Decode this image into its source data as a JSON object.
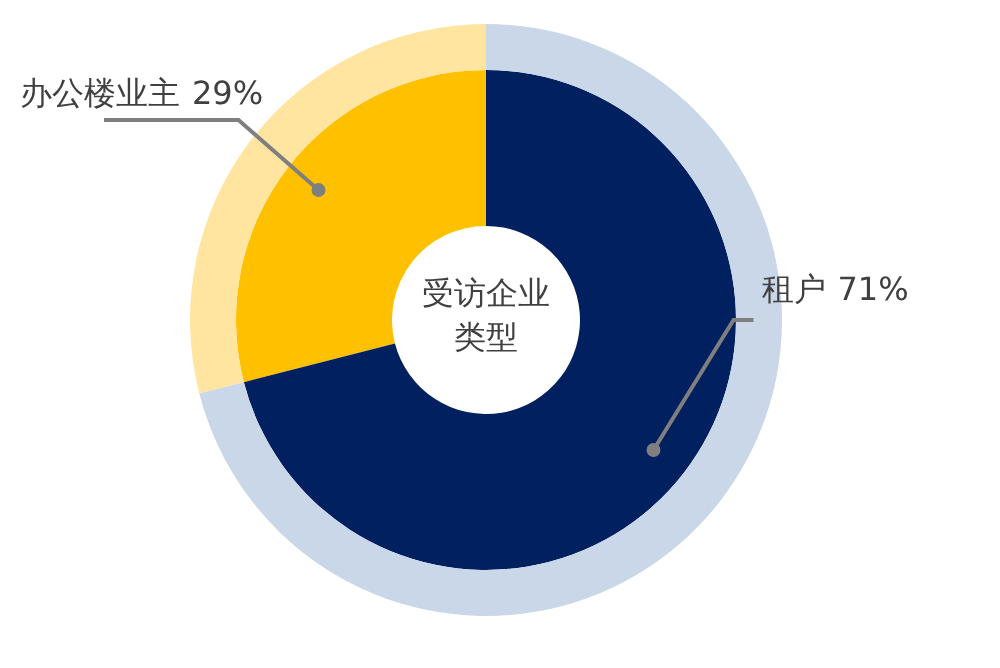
{
  "chart_data": {
    "type": "donut",
    "title": "受访企业类型",
    "categories": [
      "办公楼业主",
      "租户"
    ],
    "series": [
      {
        "values": [
          29,
          71
        ],
        "colors": [
          "#ffc000",
          "#002060"
        ],
        "value_labels": [
          "29%",
          "71%"
        ]
      },
      {
        "values": [
          29,
          71
        ],
        "colors": [
          "#ffe5a0",
          "#c9d7e8"
        ]
      }
    ]
  }
}
